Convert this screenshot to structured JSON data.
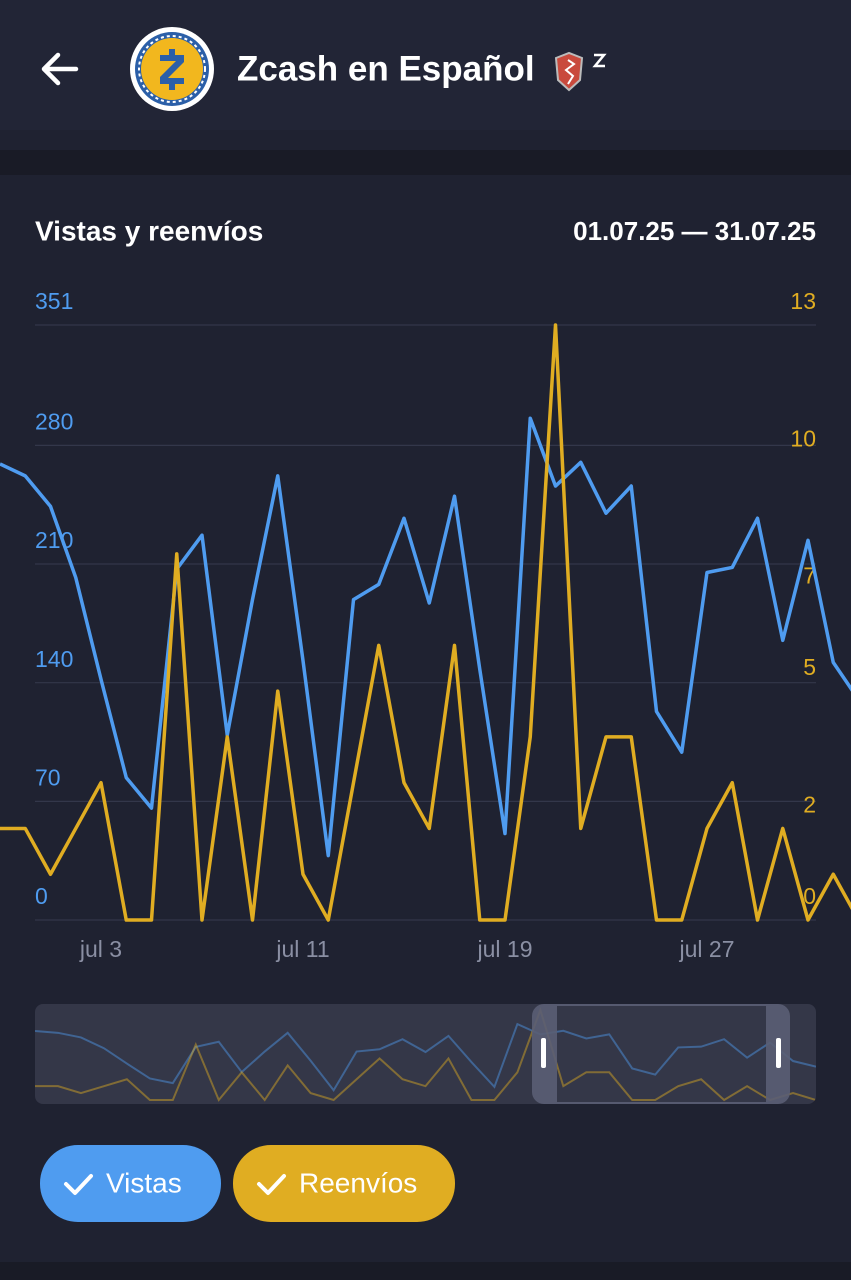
{
  "header": {
    "title": "Zcash en Español"
  },
  "chart_data": {
    "type": "line",
    "title": "Vistas y reenvíos",
    "subtitle": "01.07.25 — 31.07.25",
    "categories": [
      null,
      null,
      null,
      null,
      "jul 3",
      null,
      null,
      null,
      null,
      null,
      null,
      null,
      "jul 11",
      null,
      null,
      null,
      null,
      null,
      null,
      null,
      "jul 19",
      null,
      null,
      null,
      null,
      null,
      null,
      null,
      "jul 27",
      null,
      null,
      null,
      null,
      null,
      null
    ],
    "series": [
      {
        "name": "Vistas",
        "color": "#4f9cf0",
        "values": [
          269,
          262,
          244,
          202,
          142,
          84,
          66,
          207,
          227,
          109,
          189,
          262,
          153,
          38,
          189,
          198,
          237,
          187,
          250,
          148,
          51,
          296,
          256,
          270,
          240,
          256,
          123,
          99,
          205,
          208,
          237,
          165,
          224,
          152,
          130
        ]
      },
      {
        "name": "Reenvíos",
        "color": "#e0ad22",
        "axis": "y2",
        "values": [
          2,
          2,
          1,
          2,
          3,
          0,
          0,
          8,
          0,
          4,
          0,
          5,
          1,
          0,
          3,
          6,
          3,
          2,
          6,
          0,
          0,
          4,
          13,
          2,
          4,
          4,
          0,
          0,
          2,
          3,
          0,
          2,
          0,
          1,
          0
        ]
      }
    ],
    "ylim": [
      0,
      351
    ],
    "yticks": [
      0,
      70,
      140,
      210,
      280,
      351
    ],
    "y2lim": [
      0,
      13
    ],
    "y2ticks": [
      0,
      2,
      5,
      7,
      10,
      13
    ],
    "grid": true
  }
}
